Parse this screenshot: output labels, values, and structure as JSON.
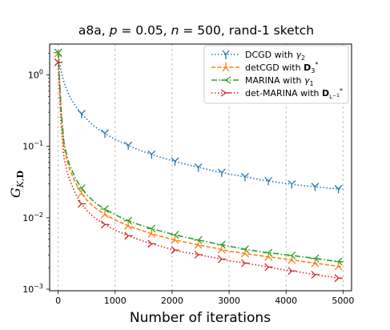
{
  "chart_data": {
    "type": "line",
    "title": "a8a, p = 0.05, n = 500, rand-1 sketch",
    "xlabel": "Number of iterations",
    "ylabel": "G_{K,D}",
    "xlim": [
      -150,
      5150
    ],
    "ylim": [
      0.00095,
      2.7
    ],
    "y_scale": "log",
    "x_ticks": [
      0,
      1000,
      2000,
      3000,
      4000,
      5000
    ],
    "x_tick_labels": [
      "0",
      "1000",
      "2000",
      "3000",
      "4000",
      "5000"
    ],
    "y_ticks": [
      1,
      0.1,
      0.01,
      0.001
    ],
    "y_tick_labels": [
      "10^0",
      "10^-1",
      "10^-2",
      "10^-3"
    ],
    "grid": "vertical dashed",
    "legend_position": "top-right",
    "series": [
      {
        "name": "DCGD with γ2",
        "color": "#1f77b4",
        "line_style": "dotted",
        "marker": "tri-down",
        "x": [
          0,
          30,
          60,
          100,
          150,
          200,
          300,
          400,
          500,
          600,
          700,
          800,
          1000,
          1200,
          1400,
          1600,
          1800,
          2000,
          2200,
          2500,
          2800,
          3000,
          3300,
          3600,
          3900,
          4200,
          4500,
          4800,
          5000
        ],
        "y": [
          2.05,
          1.4,
          1.05,
          0.8,
          0.62,
          0.5,
          0.37,
          0.29,
          0.24,
          0.2,
          0.175,
          0.155,
          0.125,
          0.105,
          0.09,
          0.079,
          0.07,
          0.063,
          0.057,
          0.05,
          0.044,
          0.041,
          0.037,
          0.0335,
          0.031,
          0.0288,
          0.0272,
          0.0258,
          0.025
        ],
        "marker_x": [
          0,
          410,
          820,
          1230,
          1640,
          2050,
          2460,
          2870,
          3280,
          3690,
          4100,
          4510,
          4920
        ]
      },
      {
        "name": "detCGD with D3*",
        "color": "#ff7f0e",
        "line_style": "dashed",
        "marker": "tri-up",
        "x": [
          0,
          20,
          50,
          100,
          150,
          200,
          300,
          400,
          500,
          600,
          700,
          800,
          1000,
          1200,
          1400,
          1600,
          1800,
          2000,
          2200,
          2500,
          2800,
          3000,
          3300,
          3600,
          3900,
          4200,
          4500,
          4800,
          5000
        ],
        "y": [
          2.0,
          0.9,
          0.3,
          0.1,
          0.065,
          0.048,
          0.031,
          0.0225,
          0.0178,
          0.0148,
          0.0128,
          0.0114,
          0.0093,
          0.0079,
          0.0069,
          0.0061,
          0.0055,
          0.005,
          0.0046,
          0.0041,
          0.0037,
          0.0034,
          0.00315,
          0.0029,
          0.0027,
          0.0025,
          0.00232,
          0.00215,
          0.00205
        ],
        "marker_x": [
          0,
          410,
          820,
          1230,
          1640,
          2050,
          2460,
          2870,
          3280,
          3690,
          4100,
          4510,
          4920
        ]
      },
      {
        "name": "MARINA with γ1",
        "color": "#2ca02c",
        "line_style": "dashdot",
        "marker": "tri-left",
        "x": [
          0,
          20,
          50,
          100,
          150,
          200,
          300,
          400,
          500,
          600,
          700,
          800,
          1000,
          1200,
          1400,
          1600,
          1800,
          2000,
          2200,
          2500,
          2800,
          3000,
          3300,
          3600,
          3900,
          4200,
          4500,
          4800,
          5000
        ],
        "y": [
          2.05,
          1.0,
          0.34,
          0.115,
          0.075,
          0.055,
          0.036,
          0.0265,
          0.021,
          0.0176,
          0.0152,
          0.0135,
          0.011,
          0.0093,
          0.0081,
          0.0072,
          0.0065,
          0.0059,
          0.0054,
          0.0048,
          0.0043,
          0.004,
          0.0036,
          0.0033,
          0.0031,
          0.0029,
          0.0027,
          0.0025,
          0.0024
        ],
        "marker_x": [
          0,
          410,
          820,
          1230,
          1640,
          2050,
          2460,
          2870,
          3280,
          3690,
          4100,
          4510,
          4920
        ]
      },
      {
        "name": "det-MARINA with DL-1*",
        "color": "#d62728",
        "line_style": "dotted",
        "marker": "tri-right",
        "x": [
          0,
          20,
          50,
          100,
          150,
          200,
          300,
          400,
          500,
          600,
          700,
          800,
          1000,
          1200,
          1400,
          1600,
          1800,
          2000,
          2200,
          2500,
          2800,
          3000,
          3300,
          3600,
          3900,
          4200,
          4500,
          4800,
          5000
        ],
        "y": [
          1.5,
          0.65,
          0.2,
          0.07,
          0.046,
          0.034,
          0.022,
          0.016,
          0.0127,
          0.0106,
          0.0092,
          0.0082,
          0.0067,
          0.0057,
          0.005,
          0.0044,
          0.004,
          0.0036,
          0.0033,
          0.003,
          0.0027,
          0.0025,
          0.0023,
          0.0021,
          0.0019,
          0.00175,
          0.0016,
          0.00148,
          0.0014
        ],
        "marker_x": [
          0,
          410,
          820,
          1230,
          1640,
          2050,
          2460,
          2870,
          3280,
          3690,
          4100,
          4510,
          4920
        ]
      }
    ]
  }
}
